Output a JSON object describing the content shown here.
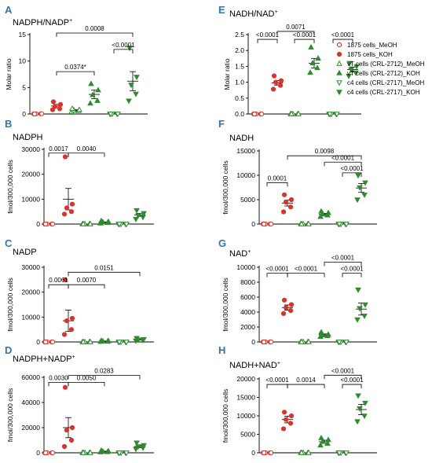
{
  "colors": {
    "red": "#e0302a",
    "green": "#2e8b2e",
    "panel_letter": "#2e75b6"
  },
  "groups": [
    "1875 cells",
    "vT cells (CRL-2712)",
    "c4 cells (CRL-2717)"
  ],
  "legend": [
    {
      "label": "1875 cells_MeOH",
      "marker": "circle",
      "filled": false,
      "color": "red"
    },
    {
      "label": "1875 cells_KOH",
      "marker": "circle",
      "filled": true,
      "color": "red"
    },
    {
      "label": "vT cells (CRL-2712)_MeOH",
      "marker": "triangle-up",
      "filled": false,
      "color": "green"
    },
    {
      "label": "vT cells (CRL-2712)_KOH",
      "marker": "triangle-up",
      "filled": true,
      "color": "green"
    },
    {
      "label": "c4 cells (CRL-2717)_MeOH",
      "marker": "triangle-down",
      "filled": false,
      "color": "green"
    },
    {
      "label": "c4 cells (CRL-2717)_KOH",
      "marker": "triangle-down",
      "filled": true,
      "color": "green"
    }
  ],
  "chart_data": [
    {
      "panel": "A",
      "type": "scatter",
      "title": "NADPH/NADP",
      "title_sup": "+",
      "ylabel": "Molar ratio",
      "ylim": [
        0,
        15
      ],
      "yticks": [
        0,
        5,
        10,
        15
      ],
      "ytick_labels": [
        "0",
        "5",
        "10",
        "15"
      ],
      "series": [
        {
          "name": "1875 cells_MeOH",
          "points": [
            0.02,
            0.04,
            0.03,
            0.05,
            0.02
          ],
          "mean": 0.03,
          "sem": 0.01
        },
        {
          "name": "1875 cells_KOH",
          "points": [
            0.8,
            1.0,
            1.4,
            1.8,
            2.3
          ],
          "mean": 1.5,
          "sem": 0.3
        },
        {
          "name": "vT cells (CRL-2712)_MeOH",
          "points": [
            0.4,
            0.6,
            0.7,
            0.8,
            1.0
          ],
          "mean": 0.7,
          "sem": 0.1
        },
        {
          "name": "vT cells (CRL-2712)_KOH",
          "points": [
            2.0,
            2.5,
            3.6,
            4.5,
            5.7
          ],
          "mean": 3.7,
          "sem": 0.8
        },
        {
          "name": "c4 cells (CRL-2717)_MeOH",
          "points": [
            0.02,
            0.03,
            0.04,
            0.03,
            0.02
          ],
          "mean": 0.03,
          "sem": 0.01
        },
        {
          "name": "c4 cells (CRL-2717)_KOH",
          "points": [
            2.5,
            3.8,
            5.5,
            7.0,
            12.5
          ],
          "mean": 6.2,
          "sem": 1.8
        }
      ],
      "comparisons": [
        {
          "from": 1,
          "to": 3,
          "label": "0.0374*",
          "y": 8.0
        },
        {
          "from": 1,
          "to": 5,
          "label": "0.0008",
          "y": 15.3
        },
        {
          "from": 4,
          "to": 5,
          "label": "<0.0001",
          "y": 12.2
        }
      ]
    },
    {
      "panel": "B",
      "type": "scatter",
      "title": "NADPH",
      "title_sup": "",
      "ylabel": "fmol/300,000 cells",
      "ylim": [
        0,
        30000
      ],
      "yticks": [
        0,
        10000,
        20000,
        30000
      ],
      "ytick_labels": [
        "0",
        "10000",
        "20000",
        "30000"
      ],
      "series": [
        {
          "name": "1875 cells_MeOH",
          "points": [
            0,
            0,
            0,
            0,
            0
          ],
          "mean": 0,
          "sem": 0
        },
        {
          "name": "1875 cells_KOH",
          "points": [
            4000,
            5000,
            6500,
            8000,
            27000
          ],
          "mean": 10000,
          "sem": 4300
        },
        {
          "name": "vT cells (CRL-2712)_MeOH",
          "points": [
            0,
            0,
            0,
            0,
            0
          ],
          "mean": 0,
          "sem": 0
        },
        {
          "name": "vT cells (CRL-2712)_KOH",
          "points": [
            300,
            500,
            700,
            900,
            1300
          ],
          "mean": 700,
          "sem": 150
        },
        {
          "name": "c4 cells (CRL-2717)_MeOH",
          "points": [
            0,
            0,
            0,
            0,
            0
          ],
          "mean": 0,
          "sem": 0
        },
        {
          "name": "c4 cells (CRL-2717)_KOH",
          "points": [
            2000,
            2800,
            3500,
            4300,
            5500
          ],
          "mean": 3700,
          "sem": 600
        }
      ],
      "comparisons": [
        {
          "from": 0,
          "to": 1,
          "label": "0.0017",
          "y": 28500
        },
        {
          "from": 1,
          "to": 3,
          "label": "0.0040",
          "y": 28500
        }
      ]
    },
    {
      "panel": "C",
      "type": "scatter",
      "title": "NADP",
      "title_sup": "",
      "ylabel": "fmol/300,000 cells",
      "ylim": [
        0,
        30000
      ],
      "yticks": [
        0,
        10000,
        20000,
        30000
      ],
      "ytick_labels": [
        "0",
        "10000",
        "20000",
        "30000"
      ],
      "series": [
        {
          "name": "1875 cells_MeOH",
          "points": [
            0,
            0,
            0,
            0,
            0
          ],
          "mean": 0,
          "sem": 0
        },
        {
          "name": "1875 cells_KOH",
          "points": [
            3000,
            5000,
            8500,
            9500,
            25000
          ],
          "mean": 8500,
          "sem": 4300
        },
        {
          "name": "vT cells (CRL-2712)_MeOH",
          "points": [
            0,
            0,
            0,
            0,
            0
          ],
          "mean": 0,
          "sem": 0
        },
        {
          "name": "vT cells (CRL-2712)_KOH",
          "points": [
            100,
            200,
            300,
            400,
            500
          ],
          "mean": 300,
          "sem": 80
        },
        {
          "name": "c4 cells (CRL-2717)_MeOH",
          "points": [
            0,
            0,
            0,
            0,
            0
          ],
          "mean": 0,
          "sem": 0
        },
        {
          "name": "c4 cells (CRL-2717)_KOH",
          "points": [
            500,
            700,
            900,
            1100,
            1500
          ],
          "mean": 1000,
          "sem": 180
        }
      ],
      "comparisons": [
        {
          "from": 0,
          "to": 1,
          "label": "0.0061",
          "y": 23000
        },
        {
          "from": 1,
          "to": 3,
          "label": "0.0070",
          "y": 23000
        },
        {
          "from": 1,
          "to": 5,
          "label": "0.0151",
          "y": 28000
        }
      ]
    },
    {
      "panel": "D",
      "type": "scatter",
      "title": "NADPH+NADP",
      "title_sup": "+",
      "ylabel": "fmol/300,000 cells",
      "ylim": [
        0,
        60000
      ],
      "yticks": [
        0,
        20000,
        40000,
        60000
      ],
      "ytick_labels": [
        "0",
        "20000",
        "40000",
        "60000"
      ],
      "series": [
        {
          "name": "1875 cells_MeOH",
          "points": [
            0,
            0,
            0,
            0,
            0
          ],
          "mean": 0,
          "sem": 0
        },
        {
          "name": "1875 cells_KOH",
          "points": [
            5000,
            10000,
            18000,
            20000,
            52000
          ],
          "mean": 20000,
          "sem": 8000
        },
        {
          "name": "vT cells (CRL-2712)_MeOH",
          "points": [
            0,
            0,
            0,
            0,
            0
          ],
          "mean": 0,
          "sem": 0
        },
        {
          "name": "vT cells (CRL-2712)_KOH",
          "points": [
            500,
            700,
            1000,
            1300,
            1800
          ],
          "mean": 1000,
          "sem": 250
        },
        {
          "name": "c4 cells (CRL-2717)_MeOH",
          "points": [
            0,
            0,
            0,
            0,
            0
          ],
          "mean": 0,
          "sem": 0
        },
        {
          "name": "c4 cells (CRL-2717)_KOH",
          "points": [
            3000,
            4000,
            5000,
            6000,
            8000
          ],
          "mean": 5000,
          "sem": 900
        }
      ],
      "comparisons": [
        {
          "from": 0,
          "to": 1,
          "label": "0.0030",
          "y": 56000
        },
        {
          "from": 1,
          "to": 3,
          "label": "0.0050",
          "y": 56000
        },
        {
          "from": 1,
          "to": 5,
          "label": "0.0283",
          "y": 61500
        }
      ]
    },
    {
      "panel": "E",
      "type": "scatter",
      "title": "NADH/NAD",
      "title_sup": "+",
      "ylabel": "Molar ratio",
      "ylim": [
        0,
        2.5
      ],
      "yticks": [
        0,
        0.5,
        1.0,
        1.5,
        2.0,
        2.5
      ],
      "ytick_labels": [
        "0.0",
        "0.5",
        "1.0",
        "1.5",
        "2.0",
        "2.5"
      ],
      "series": [
        {
          "name": "1875 cells_MeOH",
          "points": [
            0,
            0,
            0,
            0,
            0
          ],
          "mean": 0,
          "sem": 0
        },
        {
          "name": "1875 cells_KOH",
          "points": [
            0.78,
            0.9,
            1.0,
            1.05,
            1.2
          ],
          "mean": 0.98,
          "sem": 0.07
        },
        {
          "name": "vT cells (CRL-2712)_MeOH",
          "points": [
            0,
            0,
            0,
            0,
            0
          ],
          "mean": 0,
          "sem": 0
        },
        {
          "name": "vT cells (CRL-2712)_KOH",
          "points": [
            1.3,
            1.45,
            1.6,
            1.75,
            2.1
          ],
          "mean": 1.6,
          "sem": 0.15
        },
        {
          "name": "c4 cells (CRL-2717)_MeOH",
          "points": [
            0,
            0,
            0,
            0,
            0
          ],
          "mean": 0,
          "sem": 0
        },
        {
          "name": "c4 cells (CRL-2717)_KOH",
          "points": [
            1.2,
            1.3,
            1.4,
            1.5,
            1.6
          ],
          "mean": 1.4,
          "sem": 0.08
        }
      ],
      "comparisons": [
        {
          "from": 0,
          "to": 1,
          "label": "<0.0001",
          "y": 2.35
        },
        {
          "from": 2,
          "to": 3,
          "label": "<0.0001",
          "y": 2.35
        },
        {
          "from": 1,
          "to": 3,
          "label": "0.0071",
          "y": 2.6
        },
        {
          "from": 4,
          "to": 5,
          "label": "<0.0001",
          "y": 2.35
        }
      ]
    },
    {
      "panel": "F",
      "type": "scatter",
      "title": "NADH",
      "title_sup": "",
      "ylabel": "fmol/300,000 cells",
      "ylim": [
        0,
        15000
      ],
      "yticks": [
        0,
        5000,
        10000,
        15000
      ],
      "ytick_labels": [
        "0",
        "5000",
        "10000",
        "15000"
      ],
      "series": [
        {
          "name": "1875 cells_MeOH",
          "points": [
            0,
            0,
            0,
            0,
            0
          ],
          "mean": 0,
          "sem": 0
        },
        {
          "name": "1875 cells_KOH",
          "points": [
            2500,
            3500,
            4500,
            5000,
            6000
          ],
          "mean": 4300,
          "sem": 600
        },
        {
          "name": "vT cells (CRL-2712)_MeOH",
          "points": [
            0,
            0,
            0,
            0,
            0
          ],
          "mean": 0,
          "sem": 0
        },
        {
          "name": "vT cells (CRL-2712)_KOH",
          "points": [
            1500,
            1800,
            2000,
            2300,
            2600
          ],
          "mean": 2000,
          "sem": 200
        },
        {
          "name": "c4 cells (CRL-2717)_MeOH",
          "points": [
            0,
            0,
            0,
            0,
            0
          ],
          "mean": 0,
          "sem": 0
        },
        {
          "name": "c4 cells (CRL-2717)_KOH",
          "points": [
            5000,
            6000,
            7500,
            8500,
            10000
          ],
          "mean": 7400,
          "sem": 900
        }
      ],
      "comparisons": [
        {
          "from": 1,
          "to": 5,
          "label": "0.0098",
          "y": 14000
        },
        {
          "from": 0,
          "to": 1,
          "label": "0.0001",
          "y": 8500
        },
        {
          "from": 3,
          "to": 5,
          "label": "<0.0001",
          "y": 12700
        },
        {
          "from": 4,
          "to": 5,
          "label": "<0.0001",
          "y": 10500
        }
      ]
    },
    {
      "panel": "G",
      "type": "scatter",
      "title": "NAD",
      "title_sup": "+",
      "ylabel": "fmol/300,000 cells",
      "ylim": [
        0,
        10000
      ],
      "yticks": [
        0,
        2000,
        4000,
        6000,
        8000,
        10000
      ],
      "ytick_labels": [
        "0",
        "2000",
        "4000",
        "6000",
        "8000",
        "10000"
      ],
      "series": [
        {
          "name": "1875 cells_MeOH",
          "points": [
            0,
            0,
            0,
            0,
            0
          ],
          "mean": 0,
          "sem": 0
        },
        {
          "name": "1875 cells_KOH",
          "points": [
            3800,
            4200,
            4600,
            5000,
            5600
          ],
          "mean": 4600,
          "sem": 350
        },
        {
          "name": "vT cells (CRL-2712)_MeOH",
          "points": [
            0,
            0,
            0,
            0,
            0
          ],
          "mean": 0,
          "sem": 0
        },
        {
          "name": "vT cells (CRL-2712)_KOH",
          "points": [
            700,
            800,
            900,
            1000,
            1300
          ],
          "mean": 950,
          "sem": 120
        },
        {
          "name": "c4 cells (CRL-2717)_MeOH",
          "points": [
            0,
            0,
            0,
            0,
            0
          ],
          "mean": 0,
          "sem": 0
        },
        {
          "name": "c4 cells (CRL-2717)_KOH",
          "points": [
            3000,
            3500,
            4500,
            5000,
            7000
          ],
          "mean": 4400,
          "sem": 800
        }
      ],
      "comparisons": [
        {
          "from": 0,
          "to": 1,
          "label": "<0.0001",
          "y": 9200
        },
        {
          "from": 1,
          "to": 3,
          "label": "<0.0001",
          "y": 9200
        },
        {
          "from": 3,
          "to": 5,
          "label": "<0.0001",
          "y": 10700
        },
        {
          "from": 4,
          "to": 5,
          "label": "<0.0001",
          "y": 9200
        }
      ]
    },
    {
      "panel": "H",
      "type": "scatter",
      "title": "NADH+NAD",
      "title_sup": "+",
      "ylabel": "fmol/300,000 cells",
      "ylim": [
        0,
        20000
      ],
      "yticks": [
        0,
        5000,
        10000,
        15000,
        20000
      ],
      "ytick_labels": [
        "0",
        "5000",
        "10000",
        "15000",
        "20000"
      ],
      "series": [
        {
          "name": "1875 cells_MeOH",
          "points": [
            0,
            0,
            0,
            0,
            0
          ],
          "mean": 0,
          "sem": 0
        },
        {
          "name": "1875 cells_KOH",
          "points": [
            6500,
            8000,
            9000,
            10000,
            11000
          ],
          "mean": 9000,
          "sem": 900
        },
        {
          "name": "vT cells (CRL-2712)_MeOH",
          "points": [
            0,
            0,
            0,
            0,
            0
          ],
          "mean": 0,
          "sem": 0
        },
        {
          "name": "vT cells (CRL-2712)_KOH",
          "points": [
            2000,
            2500,
            3000,
            3500,
            4000
          ],
          "mean": 3000,
          "sem": 400
        },
        {
          "name": "c4 cells (CRL-2717)_MeOH",
          "points": [
            0,
            0,
            0,
            0,
            0
          ],
          "mean": 0,
          "sem": 0
        },
        {
          "name": "c4 cells (CRL-2717)_KOH",
          "points": [
            8500,
            10000,
            12000,
            13500,
            15500
          ],
          "mean": 11700,
          "sem": 1400
        }
      ],
      "comparisons": [
        {
          "from": 0,
          "to": 1,
          "label": "<0.0001",
          "y": 18500
        },
        {
          "from": 1,
          "to": 3,
          "label": "0.0014",
          "y": 18500
        },
        {
          "from": 3,
          "to": 5,
          "label": "<0.0001",
          "y": 21000
        },
        {
          "from": 4,
          "to": 5,
          "label": "<0.0001",
          "y": 18500
        }
      ]
    }
  ]
}
